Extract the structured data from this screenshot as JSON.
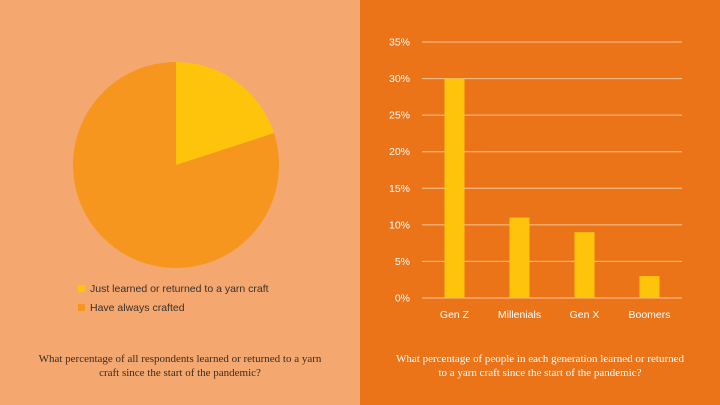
{
  "colors": {
    "left_bg": "#f4a86f",
    "right_bg": "#eb7419",
    "yellow": "#fdc40b",
    "orange": "#f6961e",
    "gridline": "#f8c79a",
    "axis_text": "#ffffff"
  },
  "chart_data": [
    {
      "type": "pie",
      "labels": [
        "Just learned or returned to a yarn craft",
        "Have always crafted"
      ],
      "values": [
        20,
        80
      ],
      "legend_position": "bottom",
      "caption": "What percentage of all respondents learned or returned to a yarn craft since the start of the pandemic?"
    },
    {
      "type": "bar",
      "categories": [
        "Gen Z",
        "Millenials",
        "Gen X",
        "Boomers"
      ],
      "values": [
        30,
        11,
        9,
        3
      ],
      "ylim": [
        0,
        35
      ],
      "yticks": [
        "0%",
        "5%",
        "10%",
        "15%",
        "20%",
        "25%",
        "30%",
        "35%"
      ],
      "grid": true,
      "caption": "What percentage of people in each generation learned or returned to a yarn craft since the start of the pandemic?"
    }
  ]
}
